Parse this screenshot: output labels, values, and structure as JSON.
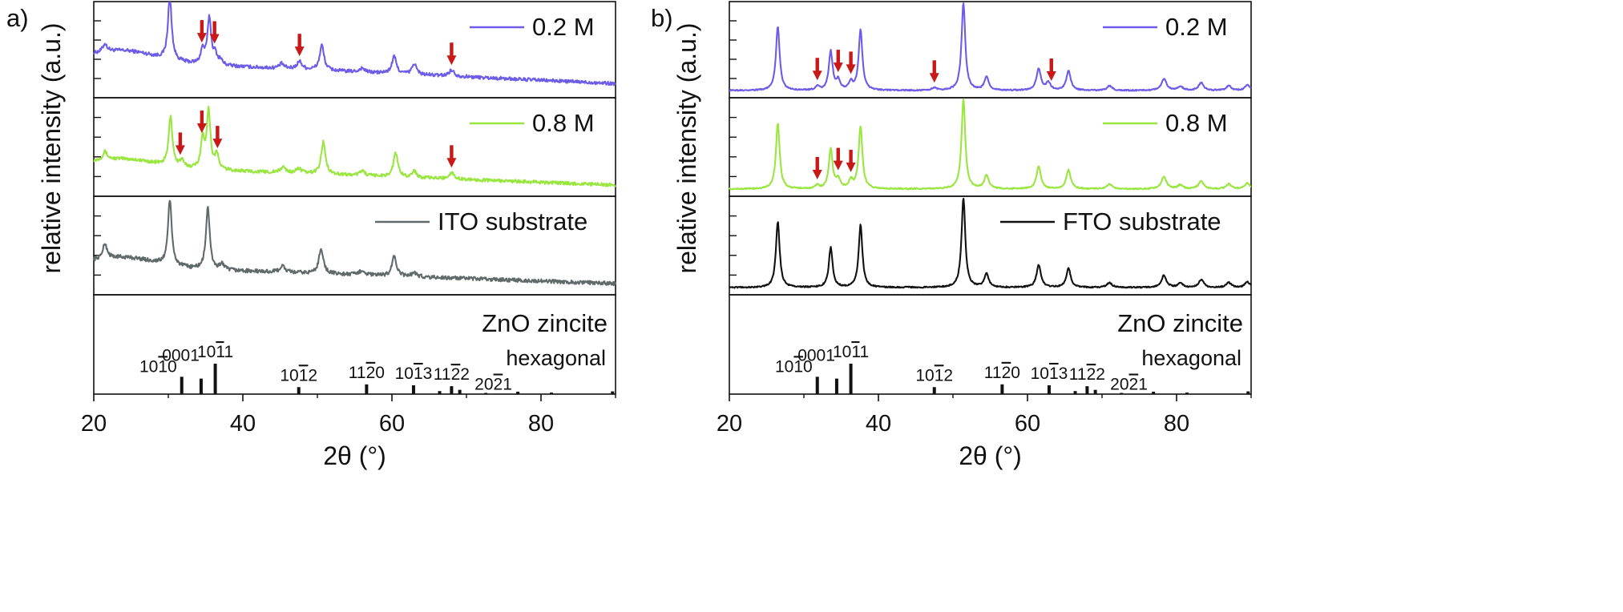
{
  "colors": {
    "c02": "#6c5ce7",
    "c08": "#99e640",
    "ito": "#606a6a",
    "fto": "#111111",
    "arrow": "#c81818",
    "axis": "#111111"
  },
  "chart_data": [
    {
      "id": "a",
      "type": "line",
      "panel_label": "a)",
      "xlabel": "2θ (°)",
      "ylabel": "relative intensity (a.u.)",
      "xlim": [
        20,
        90
      ],
      "ylim": [
        0,
        100
      ],
      "xticks": [
        20,
        40,
        60,
        80
      ],
      "x_minor": [
        30,
        50,
        70,
        90
      ],
      "subplots": [
        {
          "key": "s02",
          "legend": "0.2 M",
          "color_key": "c02",
          "baseline": 42,
          "baseline_end": 12,
          "hump": {
            "center": 24,
            "width": 6,
            "height": 14
          },
          "noise": 2.2,
          "peaks": [
            [
              21.5,
              10,
              0.35
            ],
            [
              30.2,
              82,
              0.3
            ],
            [
              34.6,
              18,
              0.3
            ],
            [
              35.5,
              60,
              0.3
            ],
            [
              36.3,
              12,
              0.3
            ],
            [
              37.0,
              6,
              0.3
            ],
            [
              45.2,
              6,
              0.4
            ],
            [
              47.6,
              10,
              0.4
            ],
            [
              50.6,
              32,
              0.35
            ],
            [
              56.0,
              5,
              0.4
            ],
            [
              60.3,
              22,
              0.35
            ],
            [
              63.0,
              14,
              0.35
            ],
            [
              68.0,
              8,
              0.4
            ]
          ],
          "arrows": [
            34.5,
            36.2,
            47.6,
            68.0
          ]
        },
        {
          "key": "s08",
          "legend": "0.8 M",
          "color_key": "c08",
          "baseline": 32,
          "baseline_end": 8,
          "hump": {
            "center": 24,
            "width": 6,
            "height": 10
          },
          "noise": 2.0,
          "peaks": [
            [
              21.5,
              10,
              0.35
            ],
            [
              30.3,
              62,
              0.3
            ],
            [
              31.8,
              8,
              0.3
            ],
            [
              34.6,
              35,
              0.3
            ],
            [
              35.4,
              72,
              0.3
            ],
            [
              36.5,
              18,
              0.3
            ],
            [
              45.4,
              7,
              0.4
            ],
            [
              47.5,
              6,
              0.4
            ],
            [
              50.8,
              40,
              0.35
            ],
            [
              56.0,
              6,
              0.4
            ],
            [
              60.5,
              30,
              0.35
            ],
            [
              63.0,
              8,
              0.35
            ],
            [
              68.0,
              8,
              0.4
            ]
          ],
          "arrows": [
            31.6,
            34.5,
            36.6,
            68.0
          ]
        },
        {
          "key": "sito",
          "legend": "ITO substrate",
          "color_key": "ito",
          "baseline": 30,
          "baseline_end": 8,
          "hump": {
            "center": 24,
            "width": 6,
            "height": 12
          },
          "noise": 2.4,
          "peaks": [
            [
              21.5,
              18,
              0.35
            ],
            [
              30.2,
              82,
              0.3
            ],
            [
              35.3,
              78,
              0.3
            ],
            [
              37.2,
              8,
              0.3
            ],
            [
              45.3,
              8,
              0.4
            ],
            [
              50.5,
              32,
              0.35
            ],
            [
              56.0,
              6,
              0.4
            ],
            [
              60.3,
              25,
              0.35
            ],
            [
              63.0,
              5,
              0.4
            ]
          ],
          "arrows": []
        }
      ],
      "reference": {
        "title": "ZnO zincite",
        "subtitle": "hexagonal",
        "lines": [
          [
            31.8,
            57
          ],
          [
            34.4,
            51
          ],
          [
            36.3,
            100
          ],
          [
            47.5,
            23
          ],
          [
            56.6,
            32
          ],
          [
            62.9,
            29
          ],
          [
            66.4,
            10
          ],
          [
            68.0,
            26
          ],
          [
            69.1,
            14
          ],
          [
            72.6,
            4
          ],
          [
            76.9,
            8
          ],
          [
            81.4,
            5
          ],
          [
            89.6,
            9
          ]
        ],
        "labels": [
          {
            "text": "10",
            "bar": "1",
            "tail": "0",
            "x": 31.8
          },
          {
            "text": "0001",
            "bar": "",
            "tail": "",
            "x": 34.4
          },
          {
            "text": "10",
            "bar": "1",
            "tail": "1",
            "x": 36.3
          },
          {
            "text": "10",
            "bar": "1",
            "tail": "2",
            "x": 47.5
          },
          {
            "text": "11",
            "bar": "2",
            "tail": "0",
            "x": 56.6
          },
          {
            "text": "10",
            "bar": "1",
            "tail": "3",
            "x": 62.9
          },
          {
            "text": "11",
            "bar": "2",
            "tail": "2",
            "x": 68.0
          },
          {
            "text": "20",
            "bar": "2",
            "tail": "1",
            "x": 72.6
          }
        ]
      }
    },
    {
      "id": "b",
      "type": "line",
      "panel_label": "b)",
      "xlabel": "2θ (°)",
      "ylabel": "relative intensity (a.u.)",
      "xlim": [
        20,
        90
      ],
      "ylim": [
        0,
        100
      ],
      "xticks": [
        20,
        40,
        60,
        80
      ],
      "x_minor": [
        30,
        50,
        70,
        90
      ],
      "subplots": [
        {
          "key": "s02",
          "legend": "0.2 M",
          "color_key": "c02",
          "baseline": 3,
          "baseline_end": 3,
          "hump": {
            "center": 24,
            "width": 6,
            "height": 0
          },
          "noise": 0.8,
          "peaks": [
            [
              26.5,
              82,
              0.3
            ],
            [
              31.8,
              5,
              0.3
            ],
            [
              33.6,
              50,
              0.3
            ],
            [
              34.6,
              12,
              0.3
            ],
            [
              36.3,
              10,
              0.3
            ],
            [
              37.6,
              78,
              0.3
            ],
            [
              47.5,
              3,
              0.4
            ],
            [
              51.4,
              112,
              0.3
            ],
            [
              54.5,
              17,
              0.35
            ],
            [
              61.5,
              28,
              0.35
            ],
            [
              62.8,
              10,
              0.35
            ],
            [
              65.5,
              25,
              0.35
            ],
            [
              71.0,
              6,
              0.4
            ],
            [
              78.3,
              15,
              0.4
            ],
            [
              80.5,
              5,
              0.4
            ],
            [
              83.3,
              10,
              0.4
            ],
            [
              87.0,
              6,
              0.4
            ],
            [
              89.5,
              7,
              0.4
            ]
          ],
          "arrows": [
            31.8,
            34.6,
            36.3,
            47.5,
            63.2
          ]
        },
        {
          "key": "s08",
          "legend": "0.8 M",
          "color_key": "c08",
          "baseline": 3,
          "baseline_end": 3,
          "hump": {
            "center": 24,
            "width": 6,
            "height": 0
          },
          "noise": 0.8,
          "peaks": [
            [
              26.5,
              82,
              0.3
            ],
            [
              31.8,
              4,
              0.3
            ],
            [
              33.6,
              50,
              0.3
            ],
            [
              34.6,
              12,
              0.3
            ],
            [
              36.3,
              10,
              0.3
            ],
            [
              37.6,
              78,
              0.3
            ],
            [
              51.4,
              112,
              0.3
            ],
            [
              54.5,
              17,
              0.35
            ],
            [
              61.5,
              28,
              0.35
            ],
            [
              65.5,
              24,
              0.35
            ],
            [
              71.0,
              6,
              0.4
            ],
            [
              78.3,
              15,
              0.4
            ],
            [
              80.5,
              5,
              0.4
            ],
            [
              83.3,
              10,
              0.4
            ],
            [
              87.0,
              6,
              0.4
            ],
            [
              89.5,
              7,
              0.4
            ]
          ],
          "arrows": [
            31.8,
            34.6,
            36.3
          ]
        },
        {
          "key": "sfto",
          "legend": "FTO substrate",
          "color_key": "fto",
          "baseline": 3,
          "baseline_end": 3,
          "hump": {
            "center": 24,
            "width": 6,
            "height": 0
          },
          "noise": 0.8,
          "peaks": [
            [
              26.5,
              82,
              0.3
            ],
            [
              33.6,
              50,
              0.3
            ],
            [
              37.6,
              78,
              0.3
            ],
            [
              51.4,
              112,
              0.3
            ],
            [
              54.5,
              17,
              0.35
            ],
            [
              61.5,
              28,
              0.35
            ],
            [
              65.5,
              24,
              0.35
            ],
            [
              71.0,
              6,
              0.4
            ],
            [
              78.3,
              15,
              0.4
            ],
            [
              80.5,
              5,
              0.4
            ],
            [
              83.3,
              10,
              0.4
            ],
            [
              87.0,
              6,
              0.4
            ],
            [
              89.5,
              7,
              0.4
            ]
          ],
          "arrows": []
        }
      ],
      "reference": {
        "title": "ZnO zincite",
        "subtitle": "hexagonal",
        "lines": [
          [
            31.8,
            57
          ],
          [
            34.4,
            51
          ],
          [
            36.3,
            100
          ],
          [
            47.5,
            23
          ],
          [
            56.6,
            32
          ],
          [
            62.9,
            29
          ],
          [
            66.4,
            10
          ],
          [
            68.0,
            26
          ],
          [
            69.1,
            14
          ],
          [
            72.6,
            4
          ],
          [
            76.9,
            8
          ],
          [
            81.4,
            5
          ],
          [
            89.6,
            9
          ]
        ],
        "labels": [
          {
            "text": "10",
            "bar": "1",
            "tail": "0",
            "x": 31.8
          },
          {
            "text": "0001",
            "bar": "",
            "tail": "",
            "x": 34.4
          },
          {
            "text": "10",
            "bar": "1",
            "tail": "1",
            "x": 36.3
          },
          {
            "text": "10",
            "bar": "1",
            "tail": "2",
            "x": 47.5
          },
          {
            "text": "11",
            "bar": "2",
            "tail": "0",
            "x": 56.6
          },
          {
            "text": "10",
            "bar": "1",
            "tail": "3",
            "x": 62.9
          },
          {
            "text": "11",
            "bar": "2",
            "tail": "2",
            "x": 68.0
          },
          {
            "text": "20",
            "bar": "2",
            "tail": "1",
            "x": 72.6
          }
        ]
      }
    }
  ]
}
